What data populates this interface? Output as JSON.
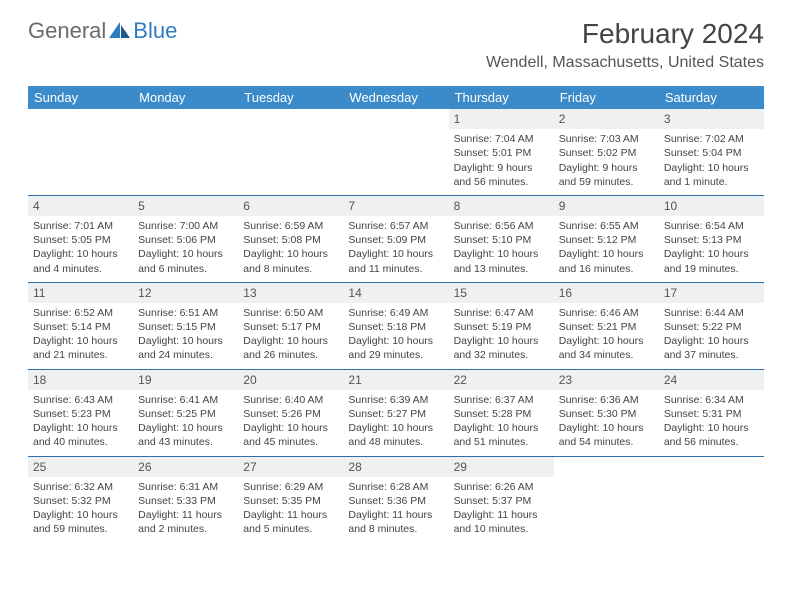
{
  "brand": {
    "first": "General",
    "second": "Blue"
  },
  "title": "February 2024",
  "location": "Wendell, Massachusetts, United States",
  "colors": {
    "header_bg": "#3b8bca",
    "header_text": "#ffffff",
    "daynum_bg": "#eef0f1",
    "rule": "#2f6ea6",
    "text": "#444444"
  },
  "day_headers": [
    "Sunday",
    "Monday",
    "Tuesday",
    "Wednesday",
    "Thursday",
    "Friday",
    "Saturday"
  ],
  "weeks": [
    [
      null,
      null,
      null,
      null,
      {
        "n": "1",
        "sr": "Sunrise: 7:04 AM",
        "ss": "Sunset: 5:01 PM",
        "d1": "Daylight: 9 hours",
        "d2": "and 56 minutes."
      },
      {
        "n": "2",
        "sr": "Sunrise: 7:03 AM",
        "ss": "Sunset: 5:02 PM",
        "d1": "Daylight: 9 hours",
        "d2": "and 59 minutes."
      },
      {
        "n": "3",
        "sr": "Sunrise: 7:02 AM",
        "ss": "Sunset: 5:04 PM",
        "d1": "Daylight: 10 hours",
        "d2": "and 1 minute."
      }
    ],
    [
      {
        "n": "4",
        "sr": "Sunrise: 7:01 AM",
        "ss": "Sunset: 5:05 PM",
        "d1": "Daylight: 10 hours",
        "d2": "and 4 minutes."
      },
      {
        "n": "5",
        "sr": "Sunrise: 7:00 AM",
        "ss": "Sunset: 5:06 PM",
        "d1": "Daylight: 10 hours",
        "d2": "and 6 minutes."
      },
      {
        "n": "6",
        "sr": "Sunrise: 6:59 AM",
        "ss": "Sunset: 5:08 PM",
        "d1": "Daylight: 10 hours",
        "d2": "and 8 minutes."
      },
      {
        "n": "7",
        "sr": "Sunrise: 6:57 AM",
        "ss": "Sunset: 5:09 PM",
        "d1": "Daylight: 10 hours",
        "d2": "and 11 minutes."
      },
      {
        "n": "8",
        "sr": "Sunrise: 6:56 AM",
        "ss": "Sunset: 5:10 PM",
        "d1": "Daylight: 10 hours",
        "d2": "and 13 minutes."
      },
      {
        "n": "9",
        "sr": "Sunrise: 6:55 AM",
        "ss": "Sunset: 5:12 PM",
        "d1": "Daylight: 10 hours",
        "d2": "and 16 minutes."
      },
      {
        "n": "10",
        "sr": "Sunrise: 6:54 AM",
        "ss": "Sunset: 5:13 PM",
        "d1": "Daylight: 10 hours",
        "d2": "and 19 minutes."
      }
    ],
    [
      {
        "n": "11",
        "sr": "Sunrise: 6:52 AM",
        "ss": "Sunset: 5:14 PM",
        "d1": "Daylight: 10 hours",
        "d2": "and 21 minutes."
      },
      {
        "n": "12",
        "sr": "Sunrise: 6:51 AM",
        "ss": "Sunset: 5:15 PM",
        "d1": "Daylight: 10 hours",
        "d2": "and 24 minutes."
      },
      {
        "n": "13",
        "sr": "Sunrise: 6:50 AM",
        "ss": "Sunset: 5:17 PM",
        "d1": "Daylight: 10 hours",
        "d2": "and 26 minutes."
      },
      {
        "n": "14",
        "sr": "Sunrise: 6:49 AM",
        "ss": "Sunset: 5:18 PM",
        "d1": "Daylight: 10 hours",
        "d2": "and 29 minutes."
      },
      {
        "n": "15",
        "sr": "Sunrise: 6:47 AM",
        "ss": "Sunset: 5:19 PM",
        "d1": "Daylight: 10 hours",
        "d2": "and 32 minutes."
      },
      {
        "n": "16",
        "sr": "Sunrise: 6:46 AM",
        "ss": "Sunset: 5:21 PM",
        "d1": "Daylight: 10 hours",
        "d2": "and 34 minutes."
      },
      {
        "n": "17",
        "sr": "Sunrise: 6:44 AM",
        "ss": "Sunset: 5:22 PM",
        "d1": "Daylight: 10 hours",
        "d2": "and 37 minutes."
      }
    ],
    [
      {
        "n": "18",
        "sr": "Sunrise: 6:43 AM",
        "ss": "Sunset: 5:23 PM",
        "d1": "Daylight: 10 hours",
        "d2": "and 40 minutes."
      },
      {
        "n": "19",
        "sr": "Sunrise: 6:41 AM",
        "ss": "Sunset: 5:25 PM",
        "d1": "Daylight: 10 hours",
        "d2": "and 43 minutes."
      },
      {
        "n": "20",
        "sr": "Sunrise: 6:40 AM",
        "ss": "Sunset: 5:26 PM",
        "d1": "Daylight: 10 hours",
        "d2": "and 45 minutes."
      },
      {
        "n": "21",
        "sr": "Sunrise: 6:39 AM",
        "ss": "Sunset: 5:27 PM",
        "d1": "Daylight: 10 hours",
        "d2": "and 48 minutes."
      },
      {
        "n": "22",
        "sr": "Sunrise: 6:37 AM",
        "ss": "Sunset: 5:28 PM",
        "d1": "Daylight: 10 hours",
        "d2": "and 51 minutes."
      },
      {
        "n": "23",
        "sr": "Sunrise: 6:36 AM",
        "ss": "Sunset: 5:30 PM",
        "d1": "Daylight: 10 hours",
        "d2": "and 54 minutes."
      },
      {
        "n": "24",
        "sr": "Sunrise: 6:34 AM",
        "ss": "Sunset: 5:31 PM",
        "d1": "Daylight: 10 hours",
        "d2": "and 56 minutes."
      }
    ],
    [
      {
        "n": "25",
        "sr": "Sunrise: 6:32 AM",
        "ss": "Sunset: 5:32 PM",
        "d1": "Daylight: 10 hours",
        "d2": "and 59 minutes."
      },
      {
        "n": "26",
        "sr": "Sunrise: 6:31 AM",
        "ss": "Sunset: 5:33 PM",
        "d1": "Daylight: 11 hours",
        "d2": "and 2 minutes."
      },
      {
        "n": "27",
        "sr": "Sunrise: 6:29 AM",
        "ss": "Sunset: 5:35 PM",
        "d1": "Daylight: 11 hours",
        "d2": "and 5 minutes."
      },
      {
        "n": "28",
        "sr": "Sunrise: 6:28 AM",
        "ss": "Sunset: 5:36 PM",
        "d1": "Daylight: 11 hours",
        "d2": "and 8 minutes."
      },
      {
        "n": "29",
        "sr": "Sunrise: 6:26 AM",
        "ss": "Sunset: 5:37 PM",
        "d1": "Daylight: 11 hours",
        "d2": "and 10 minutes."
      },
      null,
      null
    ]
  ]
}
